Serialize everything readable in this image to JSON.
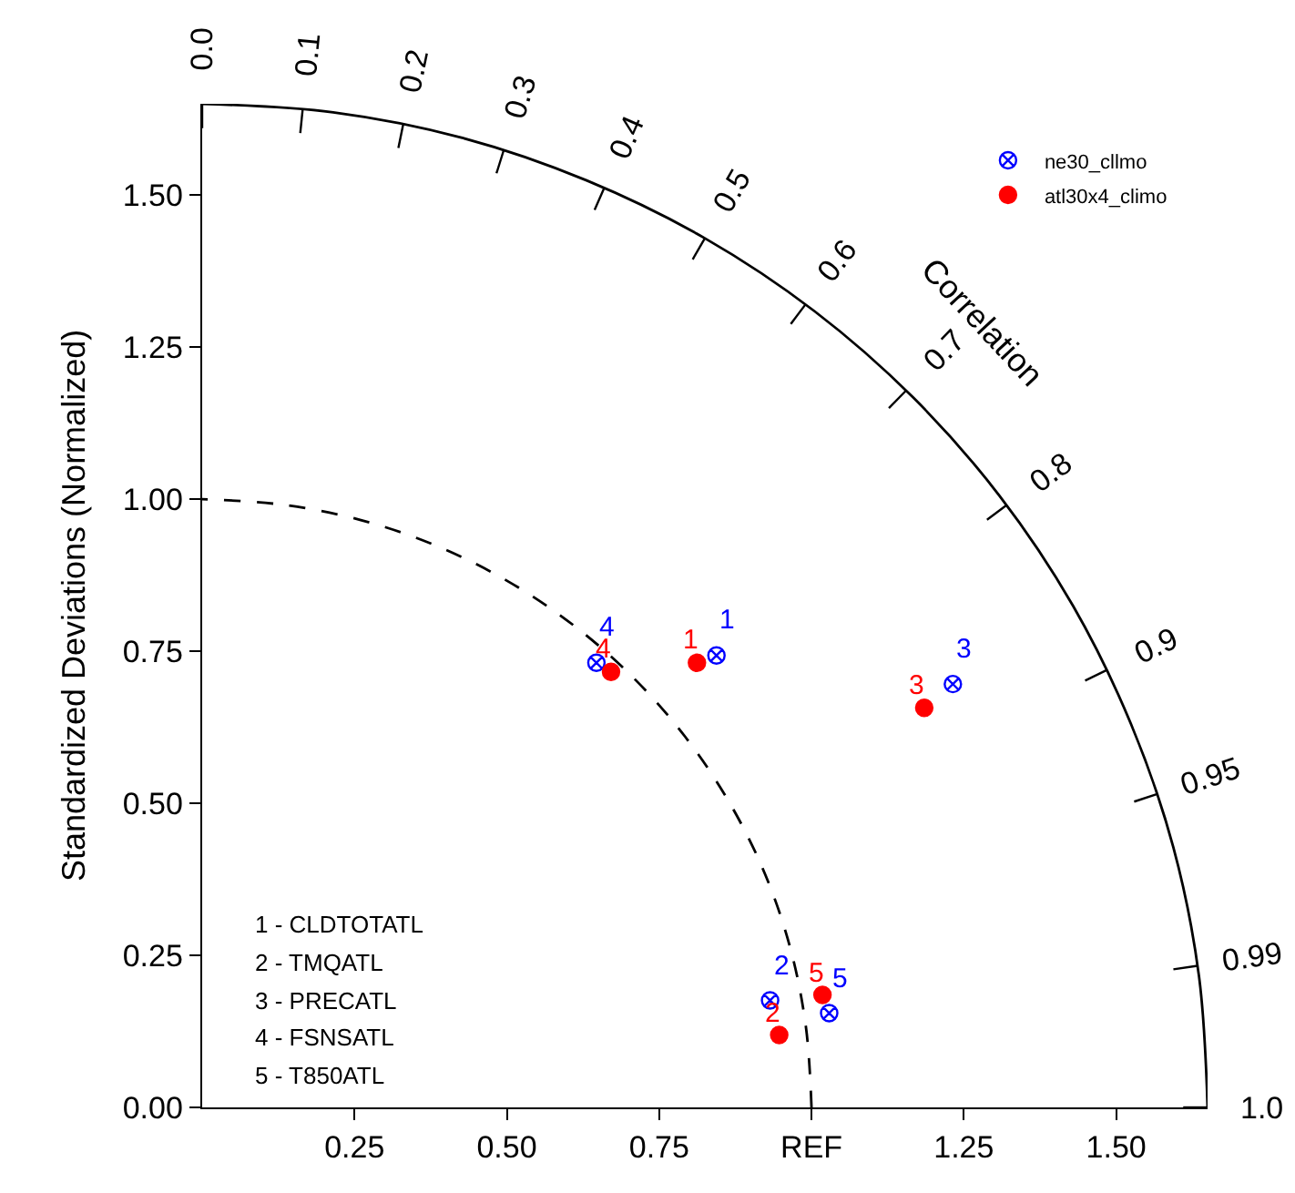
{
  "chart_data": {
    "type": "scatter",
    "ylabel": "Standardized Deviations (Normalized)",
    "xlim": [
      0,
      1.65
    ],
    "ylim": [
      0,
      1.65
    ],
    "xticks": [
      0.25,
      {
        "value": 0.5,
        "label": "0.50"
      },
      0.75,
      {
        "value": 1.0,
        "label": "REF"
      },
      1.25,
      {
        "value": 1.5,
        "label": "1.50"
      }
    ],
    "yticks": [
      {
        "value": 0,
        "label": "0.00"
      },
      0.25,
      {
        "value": 0.5,
        "label": "0.50"
      },
      0.75,
      {
        "value": 1.0,
        "label": "1.00"
      },
      1.25,
      {
        "value": 1.5,
        "label": "1.50"
      }
    ],
    "series": [
      {
        "name": "ne30_cllmo",
        "color": "#0000ff",
        "marker": "cross",
        "x": [
          0.844,
          0.932,
          1.232,
          0.647,
          1.029
        ],
        "values": [
          0.743,
          0.176,
          0.696,
          0.731,
          0.155
        ]
      },
      {
        "name": "atl30x4_climo",
        "color": "#ff0000",
        "marker": "circle",
        "x": [
          0.812,
          0.947,
          1.185,
          0.671,
          1.018
        ],
        "values": [
          0.731,
          0.119,
          0.657,
          0.716,
          0.185
        ]
      },
      {
        "type": "line",
        "color": "#000000",
        "marker": "none",
        "line_style": "dashed",
        "x": [
          1,
          0.991,
          0.966,
          0.924,
          0.866,
          0.793,
          0.707,
          0.609,
          0.5,
          0.383,
          0.259,
          0.131,
          0
        ],
        "values": [
          0,
          0.131,
          0.259,
          0.383,
          0.5,
          0.609,
          0.707,
          0.793,
          0.866,
          0.924,
          0.966,
          0.991,
          1
        ]
      },
      {
        "type": "line",
        "color": "#000000",
        "marker": "none",
        "line_style": "solid",
        "x": [
          1.65,
          1.636,
          1.594,
          1.524,
          1.429,
          1.309,
          1.167,
          1.005,
          0.825,
          0.631,
          0.427,
          0.215,
          0
        ],
        "values": [
          0,
          0.215,
          0.427,
          0.631,
          0.825,
          1.005,
          1.167,
          1.309,
          1.429,
          1.524,
          1.594,
          1.636,
          1.65
        ]
      }
    ],
    "annotations": [
      {
        "text": "1",
        "x": 0.844,
        "y": 0.743
      },
      {
        "text": "2",
        "x": 0.932,
        "y": 0.176
      },
      {
        "text": "3",
        "x": 1.232,
        "y": 0.696
      },
      {
        "text": "4",
        "x": 0.647,
        "y": 0.731
      },
      {
        "text": "5",
        "x": 1.029,
        "y": 0.155
      },
      {
        "text": "1",
        "x": 0.812,
        "y": 0.731
      },
      {
        "text": "2",
        "x": 0.947,
        "y": 0.119
      },
      {
        "text": "3",
        "x": 1.185,
        "y": 0.657
      },
      {
        "text": "4",
        "x": 0.671,
        "y": 0.716
      },
      {
        "text": "5",
        "x": 1.018,
        "y": 0.185
      },
      "0.0",
      "0.1",
      "0.2",
      "0.3",
      "0.4",
      "0.5",
      "0.6",
      "0.7",
      "0.8",
      "0.9",
      "0.95",
      "0.99",
      "1.0",
      "Correlation",
      "1 - CLDTOTATL",
      "2 - TMQATL",
      "3 - PRECATL",
      "4 - FSNSATL",
      "5 - T850ATL"
    ],
    "legend": "top right"
  }
}
